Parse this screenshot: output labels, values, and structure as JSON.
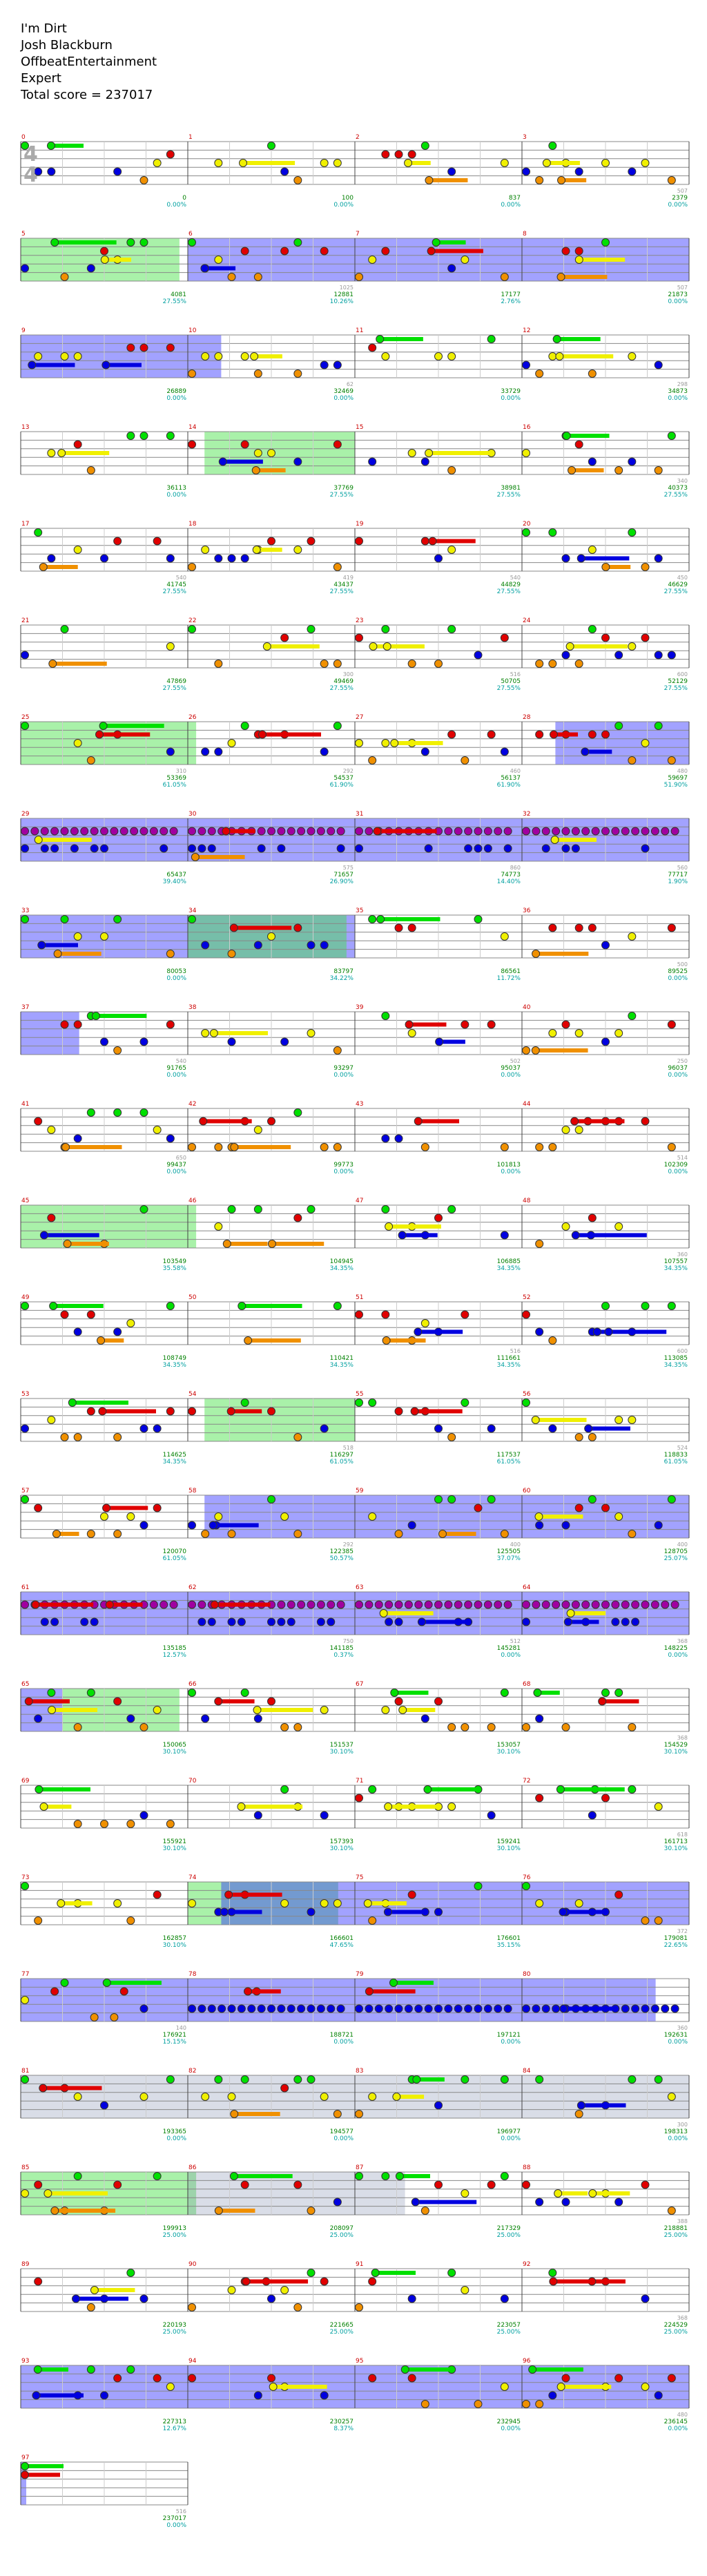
{
  "song": {
    "title": "I'm Dirt",
    "artist": "Josh Blackburn",
    "charter": "OffbeatEntertainment",
    "difficulty": "Expert",
    "total_score_label": "Total score = 237017"
  },
  "time_signature": {
    "top": "4",
    "bottom": "4"
  },
  "colors": {
    "green": "#00e000",
    "red": "#e00000",
    "yellow": "#f0f000",
    "blue": "#0000e0",
    "orange": "#f09000",
    "purple": "#a000a0",
    "sp_active": "#3030ff",
    "sp_phrase": "#40e040",
    "measure_number": "#cc0000",
    "score_value": "#008000",
    "percent_value": "#00a0a0",
    "bpm_text": "#999999"
  },
  "rows": [
    {
      "m": [
        0,
        1,
        2,
        3
      ],
      "scores": [
        "",
        "0",
        "100",
        "837",
        "2379"
      ],
      "pct": [
        "",
        "0.00%",
        "0.00%",
        "0.00%",
        "0.00%"
      ],
      "bpm": [
        "",
        "",
        "",
        "",
        "507"
      ],
      "pattern": "intro"
    },
    {
      "m": [
        5,
        6,
        7,
        8
      ],
      "scores": [
        "",
        "4081",
        "12881",
        "17177",
        "21873"
      ],
      "pct": [
        "",
        "27.55%",
        "10.26%",
        "2.76%",
        "0.00%"
      ],
      "bpm": [
        "",
        "",
        "1025",
        "",
        "507"
      ],
      "pattern": "sp"
    },
    {
      "m": [
        9,
        10,
        11,
        12
      ],
      "scores": [
        "",
        "26889",
        "32469",
        "33729",
        "34873"
      ],
      "pct": [
        "",
        "0.00%",
        "0.00%",
        "0.00%",
        "0.00%"
      ],
      "bpm": [
        "",
        "",
        "62",
        "",
        "298"
      ],
      "pattern": "a"
    },
    {
      "m": [
        13,
        14,
        15,
        16
      ],
      "scores": [
        "",
        "36113",
        "37769",
        "38981",
        "40373"
      ],
      "pct": [
        "",
        "0.00%",
        "27.55%",
        "27.55%",
        "27.55%"
      ],
      "bpm": [
        "",
        "",
        "",
        "",
        "340"
      ],
      "pattern": "b"
    },
    {
      "m": [
        17,
        18,
        19,
        20
      ],
      "scores": [
        "",
        "41745",
        "43437",
        "44829",
        "46629"
      ],
      "pct": [
        "",
        "27.55%",
        "27.55%",
        "27.55%",
        "27.55%"
      ],
      "bpm": [
        "",
        "540",
        "419",
        "540",
        "450"
      ],
      "pattern": "c"
    },
    {
      "m": [
        21,
        22,
        23,
        24
      ],
      "scores": [
        "",
        "47869",
        "49469",
        "50705",
        "52129"
      ],
      "pct": [
        "",
        "27.55%",
        "27.55%",
        "27.55%",
        "27.55%"
      ],
      "bpm": [
        "",
        "",
        "300",
        "516",
        "600"
      ],
      "pattern": "c"
    },
    {
      "m": [
        25,
        26,
        27,
        28
      ],
      "scores": [
        "",
        "53369",
        "54537",
        "56137",
        "59697"
      ],
      "pct": [
        "",
        "61.05%",
        "61.90%",
        "61.90%",
        "51.90%"
      ],
      "bpm": [
        "",
        "310",
        "292",
        "460",
        "480"
      ],
      "pattern": "d"
    },
    {
      "m": [
        29,
        30,
        31,
        32
      ],
      "scores": [
        "",
        "65437",
        "71657",
        "74773",
        "77717"
      ],
      "pct": [
        "",
        "39.40%",
        "26.90%",
        "14.40%",
        "1.90%"
      ],
      "bpm": [
        "",
        "",
        "575",
        "860",
        "560"
      ],
      "pattern": "e"
    },
    {
      "m": [
        33,
        34,
        35,
        36
      ],
      "scores": [
        "",
        "80053",
        "83797",
        "86561",
        "89525"
      ],
      "pct": [
        "",
        "0.00%",
        "34.22%",
        "11.72%",
        "0.00%"
      ],
      "bpm": [
        "",
        "",
        "",
        "",
        "500"
      ],
      "pattern": "f"
    },
    {
      "m": [
        37,
        38,
        39,
        40
      ],
      "scores": [
        "",
        "91765",
        "93297",
        "95037",
        "96037"
      ],
      "pct": [
        "",
        "0.00%",
        "0.00%",
        "0.00%",
        "0.00%"
      ],
      "bpm": [
        "",
        "540",
        "",
        "502",
        "250"
      ],
      "pattern": "g"
    },
    {
      "m": [
        41,
        42,
        43,
        44
      ],
      "scores": [
        "",
        "99437",
        "99773",
        "101813",
        "102309"
      ],
      "pct": [
        "",
        "0.00%",
        "0.00%",
        "0.00%",
        "0.00%"
      ],
      "bpm": [
        "",
        "650",
        "",
        "",
        "514"
      ],
      "pattern": "h"
    },
    {
      "m": [
        45,
        46,
        47,
        48
      ],
      "scores": [
        "",
        "103549",
        "104945",
        "106885",
        "107557"
      ],
      "pct": [
        "",
        "35.58%",
        "34.35%",
        "34.35%",
        "34.35%"
      ],
      "bpm": [
        "",
        "",
        "",
        "",
        "360"
      ],
      "pattern": "i"
    },
    {
      "m": [
        49,
        50,
        51,
        52
      ],
      "scores": [
        "",
        "108749",
        "110421",
        "111661",
        "113085"
      ],
      "pct": [
        "",
        "34.35%",
        "34.35%",
        "34.35%",
        "34.35%"
      ],
      "bpm": [
        "",
        "",
        "",
        "516",
        "600"
      ],
      "pattern": "c"
    },
    {
      "m": [
        53,
        54,
        55,
        56
      ],
      "scores": [
        "",
        "114625",
        "116297",
        "117537",
        "118833"
      ],
      "pct": [
        "",
        "34.35%",
        "61.05%",
        "61.05%",
        "61.05%"
      ],
      "bpm": [
        "",
        "",
        "518",
        "",
        "524"
      ],
      "pattern": "b"
    },
    {
      "m": [
        57,
        58,
        59,
        60
      ],
      "scores": [
        "",
        "120070",
        "122385",
        "125505",
        "128705"
      ],
      "pct": [
        "",
        "61.05%",
        "50.57%",
        "37.07%",
        "25.07%"
      ],
      "bpm": [
        "",
        "",
        "292",
        "400",
        "400"
      ],
      "pattern": "j"
    },
    {
      "m": [
        61,
        62,
        63,
        64
      ],
      "scores": [
        "",
        "135185",
        "141185",
        "145281",
        "148225"
      ],
      "pct": [
        "",
        "12.57%",
        "0.37%",
        "0.00%",
        "0.00%"
      ],
      "bpm": [
        "",
        "",
        "750",
        "512",
        "368"
      ],
      "pattern": "e"
    },
    {
      "m": [
        65,
        66,
        67,
        68
      ],
      "scores": [
        "",
        "150065",
        "151537",
        "153057",
        "154529"
      ],
      "pct": [
        "",
        "30.10%",
        "30.10%",
        "30.10%",
        "30.10%"
      ],
      "bpm": [
        "",
        "",
        "",
        "",
        "368"
      ],
      "pattern": "k"
    },
    {
      "m": [
        69,
        70,
        71,
        72
      ],
      "scores": [
        "",
        "155921",
        "157393",
        "159241",
        "161713"
      ],
      "pct": [
        "",
        "30.10%",
        "30.10%",
        "30.10%",
        "30.10%"
      ],
      "bpm": [
        "",
        "",
        "",
        "",
        "618"
      ],
      "pattern": "k2"
    },
    {
      "m": [
        73,
        74,
        75,
        76
      ],
      "scores": [
        "",
        "162857",
        "166601",
        "176601",
        "179081"
      ],
      "pct": [
        "",
        "30.10%",
        "47.65%",
        "35.15%",
        "22.65%"
      ],
      "bpm": [
        "",
        "",
        "",
        "",
        "372"
      ],
      "pattern": "l"
    },
    {
      "m": [
        77,
        78,
        79,
        80
      ],
      "scores": [
        "",
        "176921",
        "188721",
        "197121",
        "192631"
      ],
      "pct": [
        "",
        "15.15%",
        "0.00%",
        "0.00%",
        "0.00%"
      ],
      "bpm": [
        "",
        "140",
        "",
        "",
        "360"
      ],
      "pattern": "m"
    },
    {
      "m": [
        81,
        82,
        83,
        84
      ],
      "scores": [
        "",
        "193365",
        "194577",
        "196977",
        "198313"
      ],
      "pct": [
        "",
        "0.00%",
        "0.00%",
        "0.00%",
        "0.00%"
      ],
      "bpm": [
        "",
        "",
        "",
        "",
        "300"
      ],
      "pattern": "n"
    },
    {
      "m": [
        85,
        86,
        87,
        88
      ],
      "scores": [
        "",
        "199913",
        "208097",
        "217329",
        "218881"
      ],
      "pct": [
        "",
        "25.00%",
        "25.00%",
        "25.00%",
        "25.00%"
      ],
      "bpm": [
        "",
        "",
        "",
        "",
        "388"
      ],
      "pattern": "o"
    },
    {
      "m": [
        89,
        90,
        91,
        92
      ],
      "scores": [
        "",
        "220193",
        "221665",
        "223057",
        "224529"
      ],
      "pct": [
        "",
        "25.00%",
        "25.00%",
        "25.00%",
        "25.00%"
      ],
      "bpm": [
        "",
        "",
        "",
        "",
        "368"
      ],
      "pattern": "p"
    },
    {
      "m": [
        93,
        94,
        95,
        96
      ],
      "scores": [
        "",
        "227313",
        "230257",
        "232945",
        "236145"
      ],
      "pct": [
        "",
        "12.67%",
        "8.37%",
        "0.00%",
        "0.00%"
      ],
      "bpm": [
        "",
        "",
        "",
        "",
        "480"
      ],
      "pattern": "q"
    }
  ],
  "final_row": {
    "m": [
      97
    ],
    "scores": [
      "",
      "237017"
    ],
    "pct": [
      "",
      "0.00%"
    ],
    "bpm": [
      "",
      "516"
    ]
  }
}
